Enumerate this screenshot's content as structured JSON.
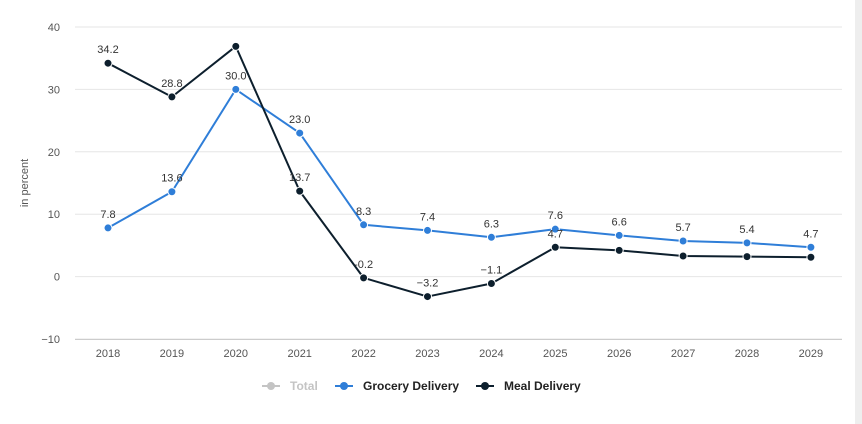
{
  "chart_data": {
    "type": "line",
    "title": "",
    "xlabel": "",
    "ylabel": "in percent",
    "categories": [
      "2018",
      "2019",
      "2020",
      "2021",
      "2022",
      "2023",
      "2024",
      "2025",
      "2026",
      "2027",
      "2028",
      "2029"
    ],
    "ylim": [
      -10,
      40
    ],
    "yticks": [
      -10,
      0,
      10,
      20,
      30,
      40
    ],
    "grid": true,
    "legend_placement": "bottom-center",
    "legend": [
      {
        "name": "Total",
        "color": "#c4c4c4",
        "active": false
      },
      {
        "name": "Grocery Delivery",
        "color": "#2f7ed8",
        "active": true
      },
      {
        "name": "Meal Delivery",
        "color": "#0d1f2d",
        "active": true
      }
    ],
    "series": [
      {
        "name": "Grocery Delivery",
        "color": "#2f7ed8",
        "values": [
          7.8,
          13.6,
          30.0,
          23.0,
          8.3,
          7.4,
          6.3,
          7.6,
          6.6,
          5.7,
          5.4,
          4.7
        ],
        "labels": [
          "7.8",
          "13.6",
          "30.0",
          "23.0",
          "8.3",
          "7.4",
          "6.3",
          "7.6",
          "6.6",
          "5.7",
          "5.4",
          "4.7"
        ]
      },
      {
        "name": "Meal Delivery",
        "color": "#0d1f2d",
        "values": [
          34.2,
          28.8,
          36.9,
          13.7,
          -0.2,
          -3.2,
          -1.1,
          4.7,
          4.2,
          3.3,
          3.2,
          3.1
        ],
        "labels": [
          "34.2",
          "28.8",
          null,
          "13.7",
          "-0.2",
          "−3.2",
          "−1.1",
          "4.7",
          null,
          null,
          null,
          null
        ]
      }
    ]
  }
}
